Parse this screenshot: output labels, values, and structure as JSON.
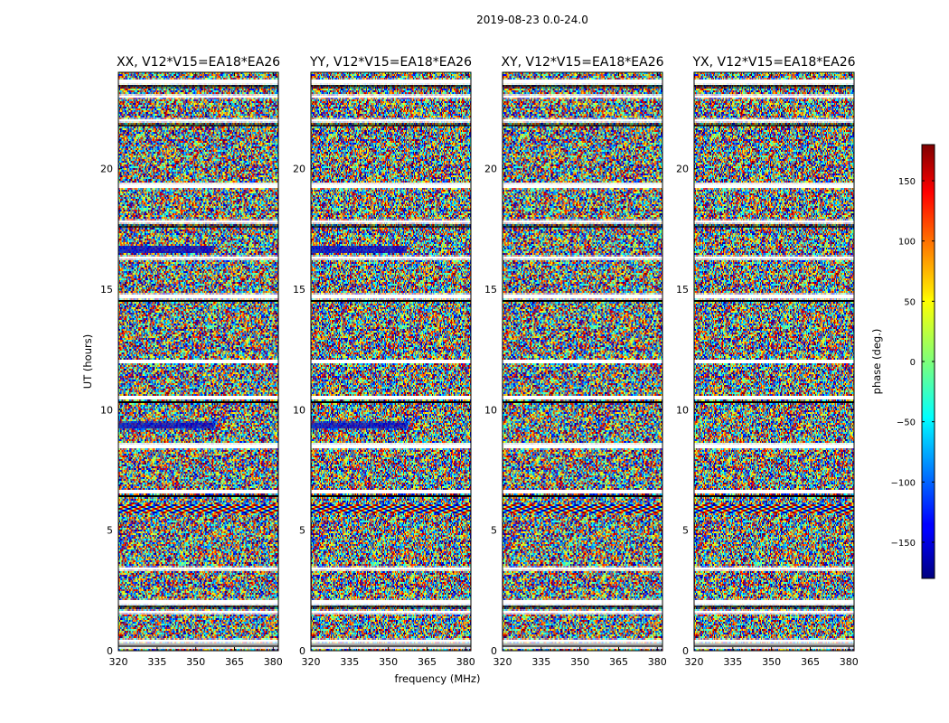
{
  "figure": {
    "suptitle": "2019-08-23 0.0-24.0"
  },
  "chart_data": {
    "type": "heatmap",
    "title": "2019-08-23 0.0-24.0",
    "xlabel": "frequency (MHz)",
    "ylabel": "UT (hours)",
    "xlim": [
      320,
      382
    ],
    "ylim": [
      0,
      24
    ],
    "xticks": [
      320,
      335,
      350,
      365,
      380
    ],
    "yticks": [
      0,
      5,
      10,
      15,
      20
    ],
    "panels": [
      {
        "title": "XX, V12*V15=EA18*EA26",
        "polarization": "XX",
        "baseline": "V12*V15=EA18*EA26"
      },
      {
        "title": "YY, V12*V15=EA18*EA26",
        "polarization": "YY",
        "baseline": "V12*V15=EA18*EA26"
      },
      {
        "title": "XY, V12*V15=EA18*EA26",
        "polarization": "XY",
        "baseline": "V12*V15=EA18*EA26"
      },
      {
        "title": "YX, V12*V15=EA18*EA26",
        "polarization": "YX",
        "baseline": "V12*V15=EA18*EA26"
      }
    ],
    "colorbar": {
      "label": "phase (deg.)",
      "range": [
        -180,
        180
      ],
      "ticks": [
        150,
        100,
        50,
        0,
        -50,
        -100,
        -150
      ],
      "tick_labels": [
        "150",
        "100",
        "50",
        "0",
        "−50",
        "−100",
        "−150"
      ],
      "colormap": "jet"
    },
    "flagged_time_gaps_hours": [
      0.2,
      0.4,
      1.6,
      2.0,
      3.4,
      6.6,
      8.5,
      10.5,
      12.0,
      14.7,
      16.3,
      17.8,
      19.3,
      22.0,
      23.0,
      23.6
    ],
    "rfi_features": [
      {
        "hours": [
          5.7,
          6.1
        ],
        "description": "strong structured interference band"
      },
      {
        "hours": [
          16.5,
          16.8
        ],
        "description": "low-phase (blue) feature in XX and YY"
      },
      {
        "hours": [
          9.2,
          9.5
        ],
        "description": "low-phase (blue) feature in XX and YY"
      }
    ]
  },
  "colors": {
    "flag_white": "#ffffff",
    "flag_black": "#000000",
    "frame": "#000000",
    "jet_low": "#00007f",
    "jet_high": "#7f0000"
  }
}
